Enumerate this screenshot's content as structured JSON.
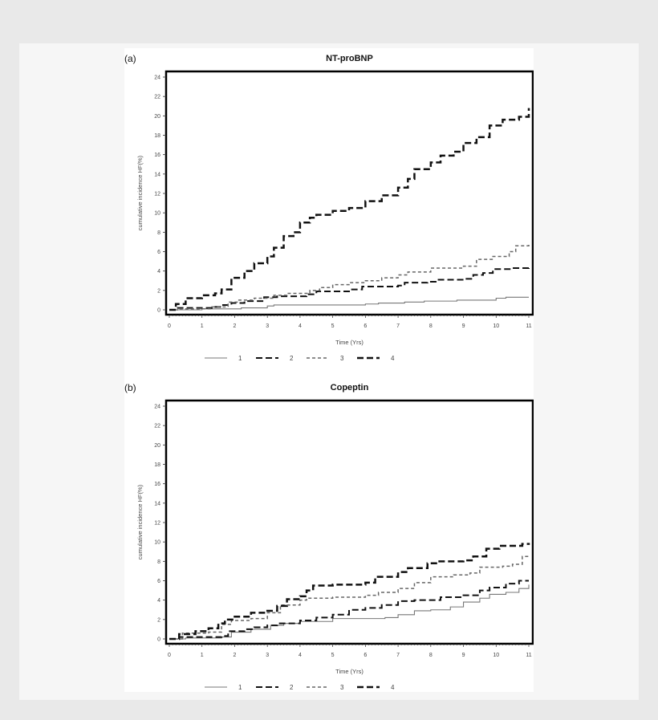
{
  "chart_data": [
    {
      "type": "line",
      "panel_label": "(a)",
      "title": "NT-proBNP",
      "xlabel": "Time (Yrs)",
      "ylabel": "cumulative incidence HF(%)",
      "xlim": [
        0,
        11
      ],
      "ylim": [
        0,
        24
      ],
      "xticks": [
        "0",
        "1",
        "2",
        "3",
        "4",
        "5",
        "6",
        "7",
        "8",
        "9",
        "10",
        "11"
      ],
      "yticks": [
        "0",
        "2",
        "4",
        "6",
        "8",
        "10",
        "12",
        "14",
        "16",
        "18",
        "20",
        "22",
        "24"
      ],
      "grid": false,
      "step": true,
      "legend_position": "bottom",
      "series": [
        {
          "name": "1",
          "style": "solid-gray",
          "color": "#777777",
          "points": [
            [
              0,
              0
            ],
            [
              1,
              0.1
            ],
            [
              2.2,
              0.2
            ],
            [
              3,
              0.4
            ],
            [
              3.2,
              0.5
            ],
            [
              6,
              0.6
            ],
            [
              6.4,
              0.7
            ],
            [
              7.2,
              0.8
            ],
            [
              7.8,
              0.9
            ],
            [
              8.8,
              1.0
            ],
            [
              10,
              1.2
            ],
            [
              10.3,
              1.3
            ],
            [
              11,
              1.3
            ]
          ]
        },
        {
          "name": "2",
          "style": "long-dash-black",
          "color": "#111111",
          "points": [
            [
              0,
              0
            ],
            [
              0.2,
              0.2
            ],
            [
              1.3,
              0.3
            ],
            [
              1.6,
              0.5
            ],
            [
              1.9,
              0.7
            ],
            [
              2.3,
              0.9
            ],
            [
              2.9,
              1.3
            ],
            [
              3.3,
              1.4
            ],
            [
              4.2,
              1.6
            ],
            [
              4.5,
              1.9
            ],
            [
              5.5,
              2.1
            ],
            [
              5.9,
              2.4
            ],
            [
              7,
              2.5
            ],
            [
              7.2,
              2.8
            ],
            [
              7.9,
              2.9
            ],
            [
              8.2,
              3.1
            ],
            [
              9,
              3.2
            ],
            [
              9.3,
              3.6
            ],
            [
              9.6,
              3.8
            ],
            [
              9.9,
              4.2
            ],
            [
              10.5,
              4.3
            ],
            [
              11,
              4.5
            ]
          ]
        },
        {
          "name": "3",
          "style": "short-dash-gray",
          "color": "#666666",
          "points": [
            [
              0,
              0
            ],
            [
              0.3,
              0.1
            ],
            [
              1.3,
              0.3
            ],
            [
              1.8,
              0.8
            ],
            [
              2.1,
              1.0
            ],
            [
              2.6,
              1.2
            ],
            [
              3.2,
              1.5
            ],
            [
              3.6,
              1.7
            ],
            [
              4.3,
              2.0
            ],
            [
              4.6,
              2.3
            ],
            [
              5,
              2.6
            ],
            [
              5.5,
              2.8
            ],
            [
              6,
              3.0
            ],
            [
              6.5,
              3.3
            ],
            [
              7,
              3.6
            ],
            [
              7.3,
              3.9
            ],
            [
              8,
              4.3
            ],
            [
              9,
              4.5
            ],
            [
              9.4,
              5.2
            ],
            [
              9.9,
              5.5
            ],
            [
              10.4,
              6.0
            ],
            [
              10.6,
              6.6
            ],
            [
              11,
              6.8
            ]
          ]
        },
        {
          "name": "4",
          "style": "heavy-dash-black",
          "color": "#111111",
          "points": [
            [
              0,
              0
            ],
            [
              0.2,
              0.6
            ],
            [
              0.5,
              1.2
            ],
            [
              1,
              1.5
            ],
            [
              1.4,
              1.7
            ],
            [
              1.6,
              2.1
            ],
            [
              1.9,
              3.3
            ],
            [
              2.3,
              4.0
            ],
            [
              2.6,
              4.8
            ],
            [
              3,
              5.5
            ],
            [
              3.2,
              6.4
            ],
            [
              3.5,
              7.6
            ],
            [
              3.8,
              8.0
            ],
            [
              4,
              9.0
            ],
            [
              4.3,
              9.5
            ],
            [
              4.5,
              9.8
            ],
            [
              5,
              10.2
            ],
            [
              5.5,
              10.5
            ],
            [
              6,
              11.2
            ],
            [
              6.5,
              11.8
            ],
            [
              7,
              12.6
            ],
            [
              7.3,
              13.5
            ],
            [
              7.5,
              14.5
            ],
            [
              8,
              15.2
            ],
            [
              8.3,
              15.9
            ],
            [
              8.7,
              16.3
            ],
            [
              9,
              17.2
            ],
            [
              9.4,
              17.8
            ],
            [
              9.8,
              19.0
            ],
            [
              10.2,
              19.6
            ],
            [
              10.7,
              19.9
            ],
            [
              11,
              20.8
            ]
          ]
        }
      ]
    },
    {
      "type": "line",
      "panel_label": "(b)",
      "title": "Copeptin",
      "xlabel": "Time (Yrs)",
      "ylabel": "cumulative incidence HF(%)",
      "xlim": [
        0,
        11
      ],
      "ylim": [
        0,
        24
      ],
      "xticks": [
        "0",
        "1",
        "2",
        "3",
        "4",
        "5",
        "6",
        "7",
        "8",
        "9",
        "10",
        "11"
      ],
      "yticks": [
        "0",
        "2",
        "4",
        "6",
        "8",
        "10",
        "12",
        "14",
        "16",
        "18",
        "20",
        "22",
        "24"
      ],
      "grid": false,
      "step": true,
      "legend_position": "bottom",
      "series": [
        {
          "name": "1",
          "style": "solid-gray",
          "color": "#777777",
          "points": [
            [
              0,
              0
            ],
            [
              0.5,
              0.1
            ],
            [
              1.6,
              0.2
            ],
            [
              1.9,
              0.7
            ],
            [
              2.5,
              1.0
            ],
            [
              3.1,
              1.4
            ],
            [
              3.5,
              1.6
            ],
            [
              4,
              1.8
            ],
            [
              5,
              2.1
            ],
            [
              6.6,
              2.2
            ],
            [
              7,
              2.5
            ],
            [
              7.5,
              2.9
            ],
            [
              8,
              3.0
            ],
            [
              8.6,
              3.3
            ],
            [
              9,
              3.8
            ],
            [
              9.5,
              4.2
            ],
            [
              9.8,
              4.6
            ],
            [
              10.3,
              4.8
            ],
            [
              10.7,
              5.2
            ],
            [
              11,
              5.6
            ]
          ]
        },
        {
          "name": "2",
          "style": "long-dash-black",
          "color": "#111111",
          "points": [
            [
              0,
              0
            ],
            [
              0.3,
              0.2
            ],
            [
              1.6,
              0.3
            ],
            [
              1.8,
              0.8
            ],
            [
              2.3,
              1.0
            ],
            [
              2.6,
              1.2
            ],
            [
              3,
              1.4
            ],
            [
              3.3,
              1.6
            ],
            [
              4,
              1.9
            ],
            [
              4.5,
              2.2
            ],
            [
              5,
              2.5
            ],
            [
              5.5,
              3.0
            ],
            [
              6,
              3.2
            ],
            [
              6.5,
              3.5
            ],
            [
              7,
              3.9
            ],
            [
              7.5,
              4.0
            ],
            [
              8.3,
              4.3
            ],
            [
              9,
              4.5
            ],
            [
              9.5,
              5.0
            ],
            [
              9.8,
              5.3
            ],
            [
              10.3,
              5.7
            ],
            [
              10.7,
              6.0
            ],
            [
              11,
              6.0
            ]
          ]
        },
        {
          "name": "3",
          "style": "short-dash-gray",
          "color": "#666666",
          "points": [
            [
              0,
              0
            ],
            [
              0.4,
              0.6
            ],
            [
              1.2,
              0.7
            ],
            [
              1.6,
              1.5
            ],
            [
              1.9,
              1.9
            ],
            [
              2.5,
              2.1
            ],
            [
              3,
              2.7
            ],
            [
              3.4,
              3.5
            ],
            [
              4,
              4.0
            ],
            [
              4.2,
              4.2
            ],
            [
              5,
              4.3
            ],
            [
              6,
              4.5
            ],
            [
              6.4,
              4.8
            ],
            [
              7,
              5.2
            ],
            [
              7.5,
              5.8
            ],
            [
              8,
              6.4
            ],
            [
              8.7,
              6.6
            ],
            [
              9.2,
              6.8
            ],
            [
              9.5,
              7.4
            ],
            [
              10.2,
              7.5
            ],
            [
              10.5,
              7.7
            ],
            [
              10.8,
              8.5
            ],
            [
              11,
              8.6
            ]
          ]
        },
        {
          "name": "4",
          "style": "heavy-dash-black",
          "color": "#111111",
          "points": [
            [
              0,
              0
            ],
            [
              0.3,
              0.5
            ],
            [
              0.8,
              0.8
            ],
            [
              1.2,
              1.1
            ],
            [
              1.5,
              1.6
            ],
            [
              1.7,
              2.0
            ],
            [
              2,
              2.3
            ],
            [
              2.5,
              2.7
            ],
            [
              3,
              2.9
            ],
            [
              3.3,
              3.4
            ],
            [
              3.6,
              4.1
            ],
            [
              4,
              4.4
            ],
            [
              4.2,
              5.0
            ],
            [
              4.4,
              5.5
            ],
            [
              5,
              5.6
            ],
            [
              6,
              5.8
            ],
            [
              6.3,
              6.4
            ],
            [
              7,
              6.9
            ],
            [
              7.3,
              7.3
            ],
            [
              7.9,
              7.8
            ],
            [
              8.2,
              8.0
            ],
            [
              9,
              8.1
            ],
            [
              9.3,
              8.5
            ],
            [
              9.7,
              9.3
            ],
            [
              10.1,
              9.6
            ],
            [
              10.8,
              9.8
            ],
            [
              11,
              9.9
            ]
          ]
        }
      ]
    }
  ]
}
